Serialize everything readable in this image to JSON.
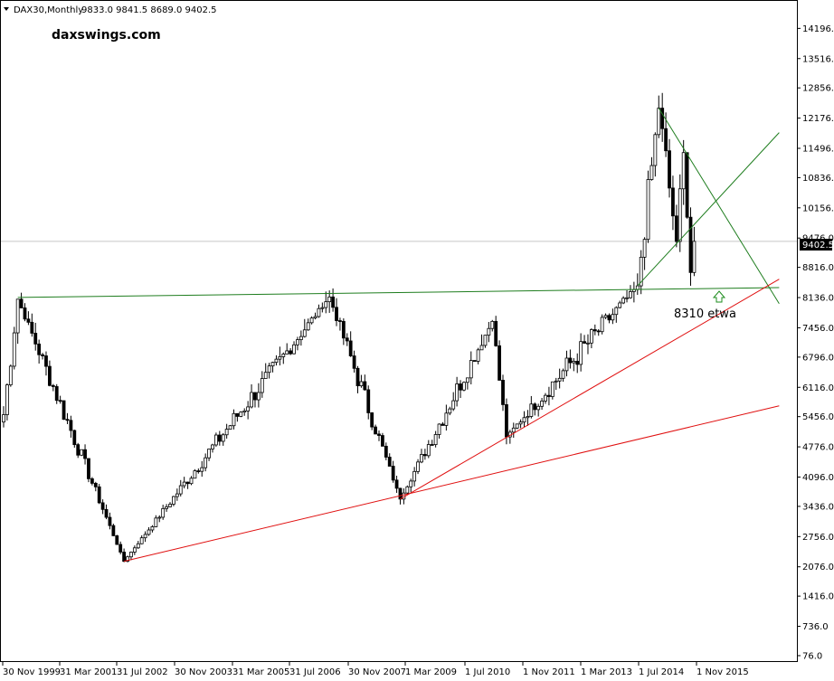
{
  "header": {
    "menu_icon": "triangle-down-icon",
    "symbol": "DAX30,Monthly",
    "ohlc": "9833.0 9841.5 8689.0 9402.5"
  },
  "watermark": {
    "text": "daxswings.com",
    "color": "#1e7d1e"
  },
  "current_price": {
    "label": "9402.5",
    "value": 9402.5
  },
  "annotation": {
    "text": "8310 etwa",
    "color": "#1e8c1e",
    "icon": "up-arrow-outline-icon",
    "value": 8310
  },
  "colors": {
    "support_lines": "#e01010",
    "green_lines": "#1e7d1e",
    "candles": "#000000"
  },
  "chart_data": {
    "type": "candlestick",
    "y_axis": {
      "ticks": [
        "14196.0",
        "13516.0",
        "12856.0",
        "12176.0",
        "11496.0",
        "10836.0",
        "10156.0",
        "9476.0",
        "8816.0",
        "8136.0",
        "7456.0",
        "6796.0",
        "6116.0",
        "5456.0",
        "4776.0",
        "4096.0",
        "3436.0",
        "2756.0",
        "2076.0",
        "1416.0",
        "736.0",
        "76.0"
      ],
      "range": [
        76,
        14700
      ]
    },
    "x_axis": {
      "ticks": [
        "30 Nov 1999",
        "31 Mar 2001",
        "31 Jul 2002",
        "30 Nov 2003",
        "31 Mar 2005",
        "31 Jul 2006",
        "30 Nov 2007",
        "1 Mar 2009",
        "1 Jul 2010",
        "1 Nov 2011",
        "1 Mar 2013",
        "1 Jul 2014",
        "1 Nov 2015"
      ],
      "range": [
        "1999-11",
        "2018-02"
      ]
    },
    "key_points": [
      {
        "date": "1999-11",
        "value": 5500
      },
      {
        "date": "2000-03",
        "value": 8100
      },
      {
        "date": "2002-09",
        "value": 2200
      },
      {
        "date": "2007-07",
        "value": 8150
      },
      {
        "date": "2009-03",
        "value": 3600
      },
      {
        "date": "2011-05",
        "value": 7600
      },
      {
        "date": "2011-09",
        "value": 5000
      },
      {
        "date": "2014-10",
        "value": 8400
      },
      {
        "date": "2015-04",
        "value": 12400
      },
      {
        "date": "2015-09",
        "value": 9400
      },
      {
        "date": "2015-11",
        "value": 11400
      },
      {
        "date": "2016-01",
        "value": 8700
      },
      {
        "date": "2016-02",
        "value": 9402.5
      }
    ],
    "trendlines": [
      {
        "color": "green",
        "from": {
          "date": "2000-03",
          "value": 8140
        },
        "to": {
          "date": "2018-02",
          "value": 8360
        }
      },
      {
        "color": "green",
        "from": {
          "date": "2015-04",
          "value": 12400
        },
        "to": {
          "date": "2018-02",
          "value": 8000
        }
      },
      {
        "color": "green",
        "from": {
          "date": "2014-10",
          "value": 8400
        },
        "to": {
          "date": "2018-02",
          "value": 11850
        }
      },
      {
        "color": "red",
        "from": {
          "date": "2002-09",
          "value": 2200
        },
        "to": {
          "date": "2018-02",
          "value": 5700
        }
      },
      {
        "color": "red",
        "from": {
          "date": "2009-03",
          "value": 3600
        },
        "to": {
          "date": "2018-02",
          "value": 8550
        }
      }
    ]
  }
}
